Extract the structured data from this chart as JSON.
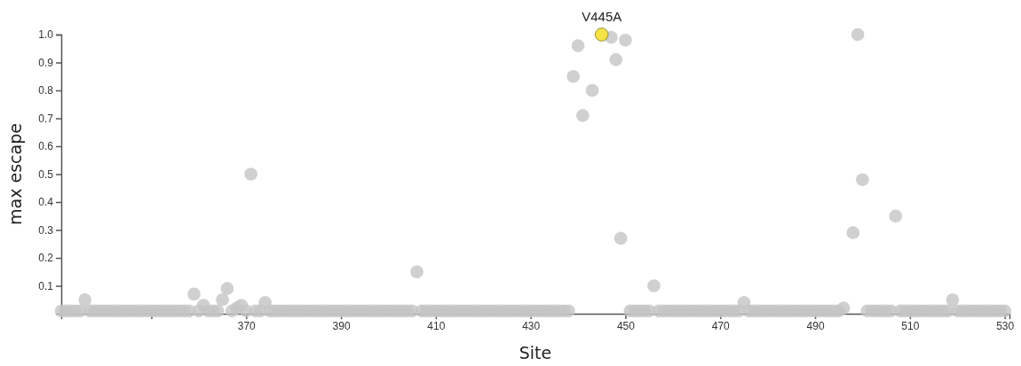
{
  "chart_data": {
    "type": "scatter",
    "xlabel": "Site",
    "ylabel": "max escape",
    "marker": "circle",
    "xlim": [
      331,
      531
    ],
    "xticks": [
      {
        "value": 350,
        "label": null
      },
      370,
      390,
      410,
      430,
      450,
      470,
      490,
      510,
      530
    ],
    "ylim": [
      0,
      1
    ],
    "yticks": [
      {
        "value": 0.1,
        "label": "0.1"
      },
      {
        "value": 0.2,
        "label": "0.2"
      },
      {
        "value": 0.3,
        "label": "0.3"
      },
      {
        "value": 0.4,
        "label": "0.4"
      },
      {
        "value": 0.5,
        "label": "0.5"
      },
      {
        "value": 0.6,
        "label": "0.6"
      },
      {
        "value": 0.7,
        "label": "0.7"
      },
      {
        "value": 0.8,
        "label": "0.8"
      },
      {
        "value": 0.9,
        "label": "0.9"
      },
      {
        "value": 1,
        "label": "1.0"
      }
    ],
    "annotations": [
      {
        "text": "V445A",
        "x": 445,
        "y": 1
      }
    ],
    "series": [
      {
        "color": "#c4c4c4",
        "x": [
          331,
          332,
          333,
          334,
          335,
          337,
          338,
          339,
          340,
          341,
          342,
          343,
          344,
          345,
          346,
          347,
          348,
          349,
          350,
          351,
          352,
          353,
          354,
          355,
          356,
          357,
          358,
          360,
          362,
          363,
          364,
          367,
          370,
          372,
          373,
          375,
          376,
          377,
          378,
          379,
          380,
          381,
          382,
          383,
          384,
          385,
          386,
          387,
          388,
          389,
          390,
          391,
          392,
          393,
          394,
          395,
          396,
          397,
          398,
          399,
          400,
          401,
          402,
          403,
          404,
          405,
          407,
          408,
          409,
          410,
          411,
          412,
          413,
          414,
          415,
          416,
          417,
          418,
          419,
          420,
          421,
          422,
          423,
          424,
          425,
          426,
          427,
          428,
          429,
          430,
          431,
          432,
          433,
          434,
          435,
          436,
          437,
          438,
          451,
          452,
          453,
          454,
          455,
          457,
          458,
          459,
          460,
          461,
          462,
          463,
          464,
          465,
          466,
          467,
          468,
          469,
          470,
          471,
          472,
          473,
          474,
          476,
          477,
          478,
          479,
          480,
          481,
          482,
          483,
          484,
          485,
          486,
          487,
          488,
          489,
          490,
          491,
          492,
          493,
          494,
          495,
          501,
          502,
          503,
          504,
          505,
          506,
          508,
          509,
          510,
          511,
          512,
          513,
          514,
          515,
          516,
          517,
          518,
          520,
          521,
          522,
          523,
          524,
          525,
          526,
          527,
          528,
          529,
          530
        ],
        "values": [
          0.01,
          0.01,
          0.01,
          0.01,
          0.01,
          0.01,
          0.01,
          0.01,
          0.01,
          0.01,
          0.01,
          0.01,
          0.01,
          0.01,
          0.01,
          0.01,
          0.01,
          0.01,
          0.01,
          0.01,
          0.01,
          0.01,
          0.01,
          0.01,
          0.01,
          0.01,
          0.01,
          0.01,
          0.01,
          0.01,
          0.01,
          0.01,
          0.01,
          0.01,
          0.01,
          0.01,
          0.01,
          0.01,
          0.01,
          0.01,
          0.01,
          0.01,
          0.01,
          0.01,
          0.01,
          0.01,
          0.01,
          0.01,
          0.01,
          0.01,
          0.01,
          0.01,
          0.01,
          0.01,
          0.01,
          0.01,
          0.01,
          0.01,
          0.01,
          0.01,
          0.01,
          0.01,
          0.01,
          0.01,
          0.01,
          0.01,
          0.01,
          0.01,
          0.01,
          0.01,
          0.01,
          0.01,
          0.01,
          0.01,
          0.01,
          0.01,
          0.01,
          0.01,
          0.01,
          0.01,
          0.01,
          0.01,
          0.01,
          0.01,
          0.01,
          0.01,
          0.01,
          0.01,
          0.01,
          0.01,
          0.01,
          0.01,
          0.01,
          0.01,
          0.01,
          0.01,
          0.01,
          0.01,
          0.01,
          0.01,
          0.01,
          0.01,
          0.01,
          0.01,
          0.01,
          0.01,
          0.01,
          0.01,
          0.01,
          0.01,
          0.01,
          0.01,
          0.01,
          0.01,
          0.01,
          0.01,
          0.01,
          0.01,
          0.01,
          0.01,
          0.01,
          0.01,
          0.01,
          0.01,
          0.01,
          0.01,
          0.01,
          0.01,
          0.01,
          0.01,
          0.01,
          0.01,
          0.01,
          0.01,
          0.01,
          0.01,
          0.01,
          0.01,
          0.01,
          0.01,
          0.01,
          0.01,
          0.01,
          0.01,
          0.01,
          0.01,
          0.01,
          0.01,
          0.01,
          0.01,
          0.01,
          0.01,
          0.01,
          0.01,
          0.01,
          0.01,
          0.01,
          0.01,
          0.01,
          0.01,
          0.01,
          0.01,
          0.01,
          0.01,
          0.01,
          0.01,
          0.01,
          0.01,
          0.01
        ]
      },
      {
        "color": "#c4c4c4",
        "x": [
          336,
          359,
          361,
          365,
          366,
          368,
          369,
          371,
          374,
          406,
          439,
          440,
          441,
          443,
          444,
          446,
          447,
          448,
          449,
          450,
          456,
          475,
          496,
          498,
          499,
          500,
          507,
          519
        ],
        "values": [
          0.05,
          0.07,
          0.03,
          0.05,
          0.09,
          0.02,
          0.03,
          0.5,
          0.04,
          0.15,
          0.85,
          0.96,
          0.71,
          0.8,
          null,
          null,
          0.99,
          0.91,
          0.27,
          0.98,
          0.1,
          0.04,
          0.02,
          0.29,
          1.0,
          0.48,
          0.35,
          0.05
        ]
      },
      {
        "color": "#f2dc1a",
        "x": [
          445
        ],
        "values": [
          1.0
        ]
      }
    ]
  }
}
